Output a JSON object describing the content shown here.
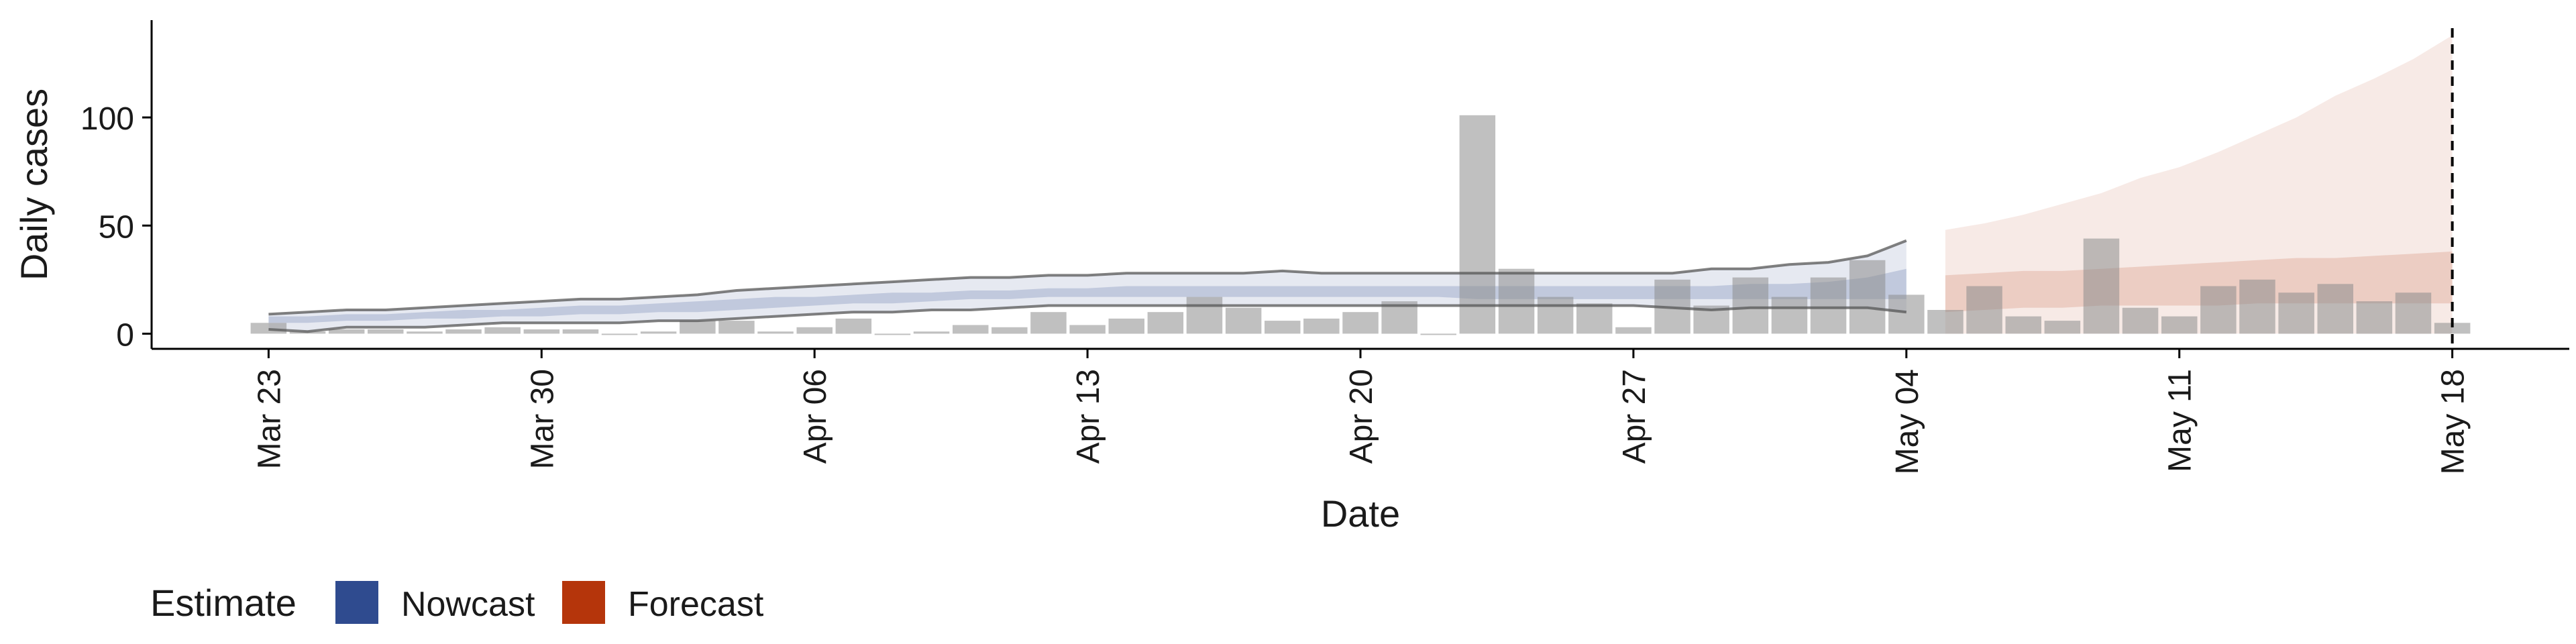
{
  "chart_data": {
    "type": "bar",
    "xlabel": "Date",
    "ylabel": "Daily cases",
    "ylim": [
      -7,
      145
    ],
    "y_ticks": [
      0,
      50,
      100
    ],
    "x_ticks": [
      {
        "label": "Mar 23",
        "day": 0
      },
      {
        "label": "Mar 30",
        "day": 7
      },
      {
        "label": "Apr 06",
        "day": 14
      },
      {
        "label": "Apr 13",
        "day": 21
      },
      {
        "label": "Apr 20",
        "day": 28
      },
      {
        "label": "Apr 27",
        "day": 35
      },
      {
        "label": "May 04",
        "day": 42
      },
      {
        "label": "May 11",
        "day": 49
      },
      {
        "label": "May 18",
        "day": 56
      }
    ],
    "xlim_days": [
      -3,
      59
    ],
    "bar_days": [
      0,
      1,
      2,
      3,
      4,
      5,
      6,
      7,
      8,
      9,
      10,
      11,
      12,
      13,
      14,
      15,
      16,
      17,
      18,
      19,
      20,
      21,
      22,
      23,
      24,
      25,
      26,
      27,
      28,
      29,
      30,
      31,
      32,
      33,
      34,
      35,
      36,
      37,
      38,
      39,
      40,
      41,
      42,
      43,
      44,
      45,
      46,
      47,
      48,
      49,
      50,
      51,
      52,
      53,
      54,
      55,
      56
    ],
    "bar_values": [
      5,
      1,
      2,
      2,
      1,
      2,
      3,
      2,
      2,
      0,
      1,
      6,
      6,
      1,
      3,
      7,
      0,
      1,
      4,
      3,
      10,
      4,
      7,
      10,
      17,
      12,
      6,
      7,
      10,
      15,
      0,
      101,
      30,
      17,
      14,
      3,
      25,
      13,
      26,
      17,
      26,
      34,
      18,
      11,
      22,
      8,
      6,
      44,
      12,
      8,
      22,
      25,
      19,
      23,
      15,
      19,
      5
    ],
    "bar_color": "#8c8c8c",
    "series": [
      {
        "name": "Nowcast",
        "color": "#2f4b8f",
        "days": [
          0,
          1,
          2,
          3,
          4,
          5,
          6,
          7,
          8,
          9,
          10,
          11,
          12,
          13,
          14,
          15,
          16,
          17,
          18,
          19,
          20,
          21,
          22,
          23,
          24,
          25,
          26,
          27,
          28,
          29,
          30,
          31,
          32,
          33,
          34,
          35,
          36,
          37,
          38,
          39,
          40,
          41,
          42
        ],
        "lower_90": [
          2,
          1,
          3,
          3,
          3,
          4,
          5,
          5,
          5,
          5,
          6,
          6,
          7,
          8,
          9,
          10,
          10,
          11,
          11,
          12,
          13,
          13,
          13,
          13,
          13,
          13,
          13,
          13,
          13,
          13,
          13,
          13,
          13,
          13,
          13,
          13,
          12,
          11,
          12,
          12,
          12,
          12,
          10
        ],
        "upper_90": [
          9,
          10,
          11,
          11,
          12,
          13,
          14,
          15,
          16,
          16,
          17,
          18,
          20,
          21,
          22,
          23,
          24,
          25,
          26,
          26,
          27,
          27,
          28,
          28,
          28,
          28,
          29,
          28,
          28,
          28,
          28,
          28,
          28,
          28,
          28,
          28,
          28,
          30,
          30,
          32,
          33,
          36,
          43
        ],
        "lower_50": [
          5,
          5,
          6,
          6,
          7,
          7,
          8,
          8,
          9,
          9,
          10,
          10,
          11,
          12,
          13,
          14,
          14,
          15,
          16,
          16,
          17,
          17,
          17,
          17,
          17,
          17,
          17,
          17,
          17,
          17,
          17,
          16,
          16,
          16,
          16,
          16,
          16,
          16,
          16,
          16,
          16,
          16,
          16
        ],
        "upper_50": [
          8,
          8,
          9,
          9,
          10,
          11,
          11,
          12,
          13,
          13,
          14,
          15,
          16,
          17,
          17,
          18,
          19,
          19,
          20,
          20,
          21,
          21,
          22,
          22,
          22,
          22,
          22,
          22,
          22,
          22,
          22,
          22,
          22,
          22,
          22,
          22,
          22,
          22,
          23,
          23,
          24,
          26,
          30
        ]
      },
      {
        "name": "Forecast",
        "color": "#b5350b",
        "days": [
          43,
          44,
          45,
          46,
          47,
          48,
          49,
          50,
          51,
          52,
          53,
          54,
          55,
          56
        ],
        "lower_90": [
          0,
          0,
          0,
          0,
          0,
          0,
          0,
          0,
          0,
          0,
          0,
          0,
          0,
          0
        ],
        "upper_90": [
          48,
          51,
          55,
          60,
          65,
          72,
          77,
          84,
          92,
          100,
          110,
          118,
          127,
          138
        ],
        "lower_50": [
          10,
          11,
          12,
          12,
          13,
          13,
          13,
          13,
          14,
          14,
          14,
          14,
          14,
          14
        ],
        "upper_50": [
          27,
          28,
          29,
          29,
          30,
          31,
          32,
          33,
          34,
          35,
          35,
          36,
          37,
          38
        ]
      }
    ],
    "forecast_cutoff_day": 56,
    "legend": {
      "title": "Estimate",
      "placement": "bottom-left",
      "items": [
        {
          "label": "Nowcast",
          "color": "#2f4b8f"
        },
        {
          "label": "Forecast",
          "color": "#b5350b"
        }
      ]
    },
    "grid": false
  }
}
